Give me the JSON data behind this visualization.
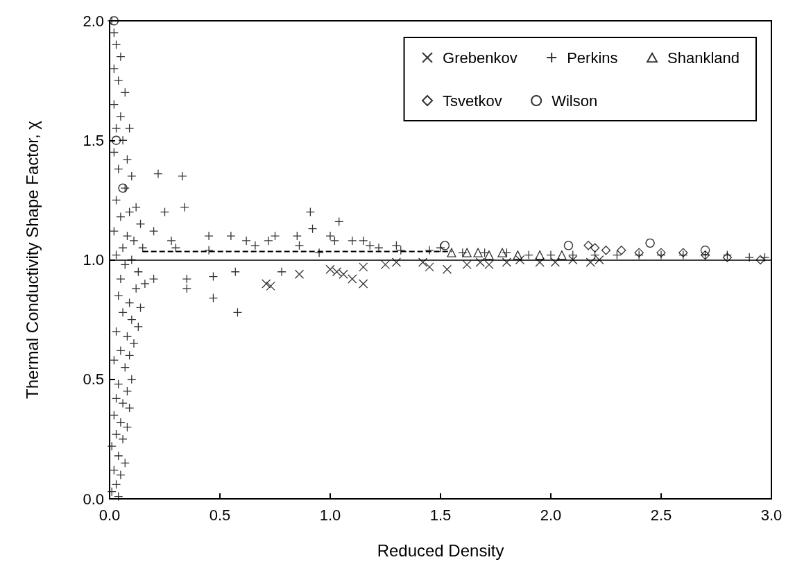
{
  "chart_data": {
    "type": "scatter",
    "xlabel": "Reduced Density",
    "ylabel": "Thermal Conductivity Shape Factor, χ",
    "xlim": [
      0,
      3
    ],
    "xticks": [
      {
        "value": 0,
        "label": "0.0"
      },
      0.5,
      {
        "value": 1,
        "label": "1.0"
      },
      1.5,
      {
        "value": 2,
        "label": "2.0"
      },
      2.5,
      {
        "value": 3,
        "label": "3.0"
      }
    ],
    "ylim": [
      0,
      2
    ],
    "yticks": [
      {
        "value": 0,
        "label": "0.0"
      },
      0.5,
      {
        "value": 1,
        "label": "1.0"
      },
      1.5,
      {
        "value": 2,
        "label": "2.0"
      }
    ],
    "grid": false,
    "legend": "top right",
    "ref_lines": [
      {
        "axis": "y",
        "value": 1,
        "label": null,
        "color": "#000000",
        "line_style": "solid"
      }
    ],
    "series": [
      {
        "name": "Grebenkov",
        "color": "#000000",
        "marker": "x",
        "x": [
          0.71,
          0.73,
          0.86,
          1.0,
          1.03,
          1.06,
          1.1,
          1.15,
          1.15,
          1.25,
          1.3,
          1.42,
          1.45,
          1.53,
          1.62,
          1.68,
          1.72,
          1.8,
          1.86,
          1.95,
          2.02,
          2.1,
          2.18,
          2.22
        ],
        "values": [
          0.9,
          0.89,
          0.94,
          0.96,
          0.95,
          0.94,
          0.92,
          0.9,
          0.97,
          0.98,
          0.99,
          0.99,
          0.97,
          0.96,
          0.98,
          0.99,
          0.98,
          0.99,
          1.0,
          0.99,
          0.99,
          1.0,
          0.99,
          1.0
        ]
      },
      {
        "name": "Perkins",
        "color": "#000000",
        "marker": "cross",
        "x": [
          0.01,
          0.02,
          0.03,
          0.05,
          0.02,
          0.04,
          0.07,
          0.02,
          0.05,
          0.03,
          0.09,
          0.06,
          0.02,
          0.08,
          0.1,
          0.04,
          0.07,
          0.12,
          0.03,
          0.09,
          0.05,
          0.14,
          0.02,
          0.08,
          0.11,
          0.06,
          0.15,
          0.03,
          0.1,
          0.07,
          0.13,
          0.05,
          0.16,
          0.12,
          0.04,
          0.09,
          0.14,
          0.06,
          0.1,
          0.13,
          0.03,
          0.08,
          0.11,
          0.05,
          0.09,
          0.02,
          0.07,
          0.1,
          0.04,
          0.08,
          0.03,
          0.06,
          0.09,
          0.02,
          0.05,
          0.08,
          0.03,
          0.06,
          0.01,
          0.04,
          0.07,
          0.02,
          0.05,
          0.03,
          0.01,
          0.04,
          0.2,
          0.22,
          0.25,
          0.28,
          0.3,
          0.33,
          0.34,
          0.35,
          0.35,
          0.2,
          0.45,
          0.45,
          0.47,
          0.47,
          0.55,
          0.57,
          0.58,
          0.62,
          0.66,
          0.72,
          0.75,
          0.78,
          0.85,
          0.86,
          0.91,
          0.92,
          0.95,
          1.0,
          1.02,
          1.04,
          1.1,
          1.15,
          1.18,
          1.22,
          1.3,
          1.32,
          1.45,
          1.5,
          1.6,
          1.7,
          1.8,
          1.9,
          2.0,
          2.1,
          2.2,
          2.3,
          2.4,
          2.5,
          2.6,
          2.7,
          2.8,
          2.9,
          2.97
        ],
        "values": [
          2.0,
          1.95,
          1.9,
          1.85,
          1.8,
          1.75,
          1.7,
          1.65,
          1.6,
          1.55,
          1.55,
          1.5,
          1.45,
          1.42,
          1.35,
          1.38,
          1.3,
          1.22,
          1.25,
          1.2,
          1.18,
          1.15,
          1.12,
          1.1,
          1.08,
          1.05,
          1.05,
          1.02,
          1.0,
          0.98,
          0.95,
          0.92,
          0.9,
          0.88,
          0.85,
          0.82,
          0.8,
          0.78,
          0.75,
          0.72,
          0.7,
          0.68,
          0.65,
          0.62,
          0.6,
          0.58,
          0.55,
          0.5,
          0.48,
          0.45,
          0.42,
          0.4,
          0.38,
          0.35,
          0.32,
          0.3,
          0.27,
          0.25,
          0.22,
          0.18,
          0.15,
          0.12,
          0.1,
          0.06,
          0.03,
          0.01,
          1.12,
          1.36,
          1.2,
          1.08,
          1.05,
          1.35,
          1.22,
          0.92,
          0.88,
          0.92,
          1.1,
          1.04,
          0.93,
          0.84,
          1.1,
          0.95,
          0.78,
          1.08,
          1.06,
          1.08,
          1.1,
          0.95,
          1.1,
          1.06,
          1.2,
          1.13,
          1.03,
          1.1,
          1.08,
          1.16,
          1.08,
          1.08,
          1.06,
          1.05,
          1.06,
          1.04,
          1.04,
          1.05,
          1.03,
          1.03,
          1.03,
          1.02,
          1.02,
          1.02,
          1.02,
          1.02,
          1.02,
          1.02,
          1.02,
          1.02,
          1.02,
          1.01,
          1.01
        ]
      },
      {
        "name": "Shankland",
        "color": "#000000",
        "marker": "triangle",
        "x": [
          1.55,
          1.62,
          1.67,
          1.72,
          1.78,
          1.85,
          1.95,
          2.05
        ],
        "values": [
          1.03,
          1.03,
          1.03,
          1.02,
          1.03,
          1.02,
          1.02,
          1.02
        ]
      },
      {
        "name": "Tsvetkov",
        "color": "#000000",
        "marker": "diamond",
        "x": [
          2.17,
          2.2,
          2.25,
          2.32,
          2.4,
          2.5,
          2.6,
          2.7,
          2.8,
          2.95
        ],
        "values": [
          1.06,
          1.05,
          1.04,
          1.04,
          1.03,
          1.03,
          1.03,
          1.02,
          1.01,
          1.0
        ]
      },
      {
        "name": "Wilson",
        "color": "#000000",
        "marker": "circle",
        "x": [
          0.02,
          0.03,
          0.06,
          1.52,
          2.08,
          2.45,
          2.7
        ],
        "values": [
          2.0,
          1.5,
          1.3,
          1.06,
          1.06,
          1.07,
          1.04
        ]
      },
      {
        "type": "line",
        "color": "#000000",
        "line_style": "dashed",
        "marker": "none",
        "x": [
          0.15,
          1.55
        ],
        "values": [
          1.035,
          1.035
        ]
      }
    ]
  }
}
